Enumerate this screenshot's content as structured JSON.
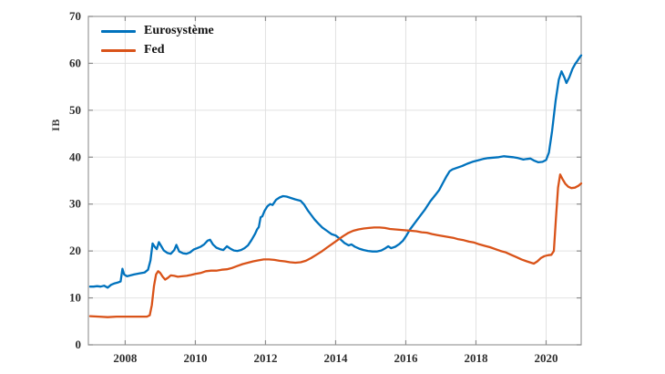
{
  "figure": {
    "background": "#ffffff"
  },
  "style": {
    "grid_color": "#e2e2e2",
    "spine_color": "#9a9a9a",
    "tick_color": "#8c8c8c",
    "tick_label_color": "#2e2e2e",
    "line_width": 2.3
  },
  "chart_data": {
    "type": "line",
    "title": "",
    "xlabel": "",
    "ylabel": "IB",
    "xlim": [
      2006.95,
      2021.0
    ],
    "ylim": [
      0,
      70
    ],
    "x_ticks": [
      2008,
      2010,
      2012,
      2014,
      2016,
      2018,
      2020
    ],
    "y_ticks": [
      0,
      10,
      20,
      30,
      40,
      50,
      60,
      70
    ],
    "grid": true,
    "legend_position": "top-left",
    "series": [
      {
        "name": "Eurosystème",
        "color": "#0072BD",
        "points": [
          [
            2007.0,
            12.4
          ],
          [
            2007.1,
            12.4
          ],
          [
            2007.2,
            12.5
          ],
          [
            2007.3,
            12.4
          ],
          [
            2007.4,
            12.6
          ],
          [
            2007.5,
            12.2
          ],
          [
            2007.6,
            12.8
          ],
          [
            2007.7,
            13.1
          ],
          [
            2007.8,
            13.3
          ],
          [
            2007.87,
            13.5
          ],
          [
            2007.92,
            16.2
          ],
          [
            2007.97,
            15.0
          ],
          [
            2008.05,
            14.6
          ],
          [
            2008.15,
            14.8
          ],
          [
            2008.25,
            15.0
          ],
          [
            2008.4,
            15.2
          ],
          [
            2008.55,
            15.4
          ],
          [
            2008.65,
            16.0
          ],
          [
            2008.72,
            18.0
          ],
          [
            2008.78,
            21.6
          ],
          [
            2008.84,
            20.9
          ],
          [
            2008.9,
            20.4
          ],
          [
            2008.96,
            21.9
          ],
          [
            2009.03,
            21.0
          ],
          [
            2009.1,
            20.1
          ],
          [
            2009.2,
            19.6
          ],
          [
            2009.3,
            19.4
          ],
          [
            2009.4,
            20.2
          ],
          [
            2009.46,
            21.3
          ],
          [
            2009.54,
            19.9
          ],
          [
            2009.65,
            19.5
          ],
          [
            2009.75,
            19.4
          ],
          [
            2009.85,
            19.7
          ],
          [
            2009.95,
            20.3
          ],
          [
            2010.05,
            20.6
          ],
          [
            2010.15,
            20.9
          ],
          [
            2010.25,
            21.4
          ],
          [
            2010.35,
            22.2
          ],
          [
            2010.42,
            22.4
          ],
          [
            2010.5,
            21.4
          ],
          [
            2010.6,
            20.7
          ],
          [
            2010.7,
            20.4
          ],
          [
            2010.8,
            20.2
          ],
          [
            2010.9,
            21.0
          ],
          [
            2011.0,
            20.5
          ],
          [
            2011.1,
            20.1
          ],
          [
            2011.2,
            20.0
          ],
          [
            2011.3,
            20.2
          ],
          [
            2011.4,
            20.6
          ],
          [
            2011.5,
            21.2
          ],
          [
            2011.6,
            22.3
          ],
          [
            2011.7,
            23.6
          ],
          [
            2011.76,
            24.6
          ],
          [
            2011.81,
            25.1
          ],
          [
            2011.86,
            27.2
          ],
          [
            2011.91,
            27.4
          ],
          [
            2011.97,
            28.5
          ],
          [
            2012.05,
            29.5
          ],
          [
            2012.13,
            30.0
          ],
          [
            2012.2,
            29.8
          ],
          [
            2012.3,
            30.9
          ],
          [
            2012.4,
            31.4
          ],
          [
            2012.5,
            31.7
          ],
          [
            2012.6,
            31.6
          ],
          [
            2012.72,
            31.3
          ],
          [
            2012.85,
            31.0
          ],
          [
            2013.0,
            30.7
          ],
          [
            2013.1,
            29.9
          ],
          [
            2013.2,
            28.7
          ],
          [
            2013.3,
            27.7
          ],
          [
            2013.4,
            26.7
          ],
          [
            2013.5,
            25.9
          ],
          [
            2013.62,
            25.0
          ],
          [
            2013.75,
            24.3
          ],
          [
            2013.88,
            23.6
          ],
          [
            2014.0,
            23.3
          ],
          [
            2014.12,
            22.6
          ],
          [
            2014.25,
            21.7
          ],
          [
            2014.37,
            21.2
          ],
          [
            2014.45,
            21.4
          ],
          [
            2014.55,
            20.9
          ],
          [
            2014.67,
            20.5
          ],
          [
            2014.8,
            20.2
          ],
          [
            2014.92,
            20.0
          ],
          [
            2015.05,
            19.9
          ],
          [
            2015.17,
            19.9
          ],
          [
            2015.3,
            20.1
          ],
          [
            2015.42,
            20.6
          ],
          [
            2015.5,
            21.0
          ],
          [
            2015.58,
            20.6
          ],
          [
            2015.7,
            20.9
          ],
          [
            2015.82,
            21.5
          ],
          [
            2015.92,
            22.2
          ],
          [
            2016.02,
            23.3
          ],
          [
            2016.12,
            24.6
          ],
          [
            2016.25,
            25.9
          ],
          [
            2016.4,
            27.4
          ],
          [
            2016.55,
            28.9
          ],
          [
            2016.7,
            30.6
          ],
          [
            2016.85,
            32.0
          ],
          [
            2016.95,
            33.0
          ],
          [
            2017.05,
            34.4
          ],
          [
            2017.15,
            35.8
          ],
          [
            2017.25,
            37.0
          ],
          [
            2017.33,
            37.4
          ],
          [
            2017.45,
            37.7
          ],
          [
            2017.6,
            38.1
          ],
          [
            2017.75,
            38.6
          ],
          [
            2017.9,
            39.0
          ],
          [
            2018.05,
            39.3
          ],
          [
            2018.2,
            39.6
          ],
          [
            2018.35,
            39.8
          ],
          [
            2018.5,
            39.9
          ],
          [
            2018.65,
            40.0
          ],
          [
            2018.8,
            40.2
          ],
          [
            2018.92,
            40.1
          ],
          [
            2019.05,
            40.0
          ],
          [
            2019.2,
            39.8
          ],
          [
            2019.35,
            39.5
          ],
          [
            2019.45,
            39.6
          ],
          [
            2019.55,
            39.7
          ],
          [
            2019.65,
            39.3
          ],
          [
            2019.78,
            38.9
          ],
          [
            2019.9,
            39.0
          ],
          [
            2020.0,
            39.4
          ],
          [
            2020.08,
            41.0
          ],
          [
            2020.17,
            45.5
          ],
          [
            2020.27,
            52.0
          ],
          [
            2020.36,
            56.5
          ],
          [
            2020.44,
            58.3
          ],
          [
            2020.52,
            57.0
          ],
          [
            2020.58,
            55.8
          ],
          [
            2020.66,
            57.0
          ],
          [
            2020.75,
            58.8
          ],
          [
            2020.83,
            59.9
          ],
          [
            2020.9,
            60.6
          ],
          [
            2020.96,
            61.3
          ],
          [
            2021.0,
            61.7
          ]
        ]
      },
      {
        "name": "Fed",
        "color": "#D95319",
        "points": [
          [
            2007.0,
            6.1
          ],
          [
            2007.25,
            6.0
          ],
          [
            2007.5,
            5.9
          ],
          [
            2007.75,
            6.0
          ],
          [
            2008.0,
            6.0
          ],
          [
            2008.25,
            6.0
          ],
          [
            2008.5,
            6.0
          ],
          [
            2008.62,
            6.0
          ],
          [
            2008.7,
            6.3
          ],
          [
            2008.76,
            8.5
          ],
          [
            2008.82,
            12.5
          ],
          [
            2008.88,
            15.0
          ],
          [
            2008.94,
            15.7
          ],
          [
            2009.0,
            15.3
          ],
          [
            2009.07,
            14.5
          ],
          [
            2009.14,
            13.9
          ],
          [
            2009.22,
            14.3
          ],
          [
            2009.3,
            14.8
          ],
          [
            2009.4,
            14.7
          ],
          [
            2009.5,
            14.5
          ],
          [
            2009.62,
            14.6
          ],
          [
            2009.75,
            14.7
          ],
          [
            2009.88,
            14.9
          ],
          [
            2010.0,
            15.1
          ],
          [
            2010.15,
            15.3
          ],
          [
            2010.3,
            15.7
          ],
          [
            2010.45,
            15.8
          ],
          [
            2010.6,
            15.8
          ],
          [
            2010.75,
            16.0
          ],
          [
            2010.9,
            16.1
          ],
          [
            2011.05,
            16.4
          ],
          [
            2011.2,
            16.8
          ],
          [
            2011.35,
            17.2
          ],
          [
            2011.5,
            17.5
          ],
          [
            2011.65,
            17.8
          ],
          [
            2011.8,
            18.0
          ],
          [
            2011.95,
            18.2
          ],
          [
            2012.1,
            18.2
          ],
          [
            2012.25,
            18.1
          ],
          [
            2012.4,
            17.9
          ],
          [
            2012.55,
            17.8
          ],
          [
            2012.7,
            17.6
          ],
          [
            2012.85,
            17.5
          ],
          [
            2013.0,
            17.6
          ],
          [
            2013.15,
            17.9
          ],
          [
            2013.3,
            18.5
          ],
          [
            2013.45,
            19.2
          ],
          [
            2013.6,
            19.9
          ],
          [
            2013.75,
            20.7
          ],
          [
            2013.9,
            21.5
          ],
          [
            2014.05,
            22.3
          ],
          [
            2014.2,
            23.1
          ],
          [
            2014.35,
            23.8
          ],
          [
            2014.5,
            24.3
          ],
          [
            2014.65,
            24.6
          ],
          [
            2014.8,
            24.8
          ],
          [
            2014.95,
            24.9
          ],
          [
            2015.1,
            25.0
          ],
          [
            2015.25,
            25.0
          ],
          [
            2015.4,
            24.9
          ],
          [
            2015.55,
            24.7
          ],
          [
            2015.7,
            24.6
          ],
          [
            2015.85,
            24.5
          ],
          [
            2016.0,
            24.4
          ],
          [
            2016.15,
            24.3
          ],
          [
            2016.3,
            24.2
          ],
          [
            2016.45,
            24.0
          ],
          [
            2016.6,
            23.9
          ],
          [
            2016.75,
            23.6
          ],
          [
            2016.9,
            23.4
          ],
          [
            2017.05,
            23.2
          ],
          [
            2017.2,
            23.0
          ],
          [
            2017.35,
            22.8
          ],
          [
            2017.5,
            22.5
          ],
          [
            2017.65,
            22.3
          ],
          [
            2017.8,
            22.0
          ],
          [
            2017.95,
            21.8
          ],
          [
            2018.1,
            21.4
          ],
          [
            2018.25,
            21.1
          ],
          [
            2018.4,
            20.8
          ],
          [
            2018.55,
            20.4
          ],
          [
            2018.7,
            20.0
          ],
          [
            2018.85,
            19.7
          ],
          [
            2019.0,
            19.2
          ],
          [
            2019.15,
            18.7
          ],
          [
            2019.3,
            18.2
          ],
          [
            2019.45,
            17.8
          ],
          [
            2019.57,
            17.5
          ],
          [
            2019.65,
            17.3
          ],
          [
            2019.75,
            17.8
          ],
          [
            2019.85,
            18.5
          ],
          [
            2019.95,
            18.9
          ],
          [
            2020.05,
            19.1
          ],
          [
            2020.15,
            19.2
          ],
          [
            2020.22,
            20.0
          ],
          [
            2020.28,
            27.0
          ],
          [
            2020.34,
            33.5
          ],
          [
            2020.4,
            36.3
          ],
          [
            2020.47,
            35.3
          ],
          [
            2020.55,
            34.3
          ],
          [
            2020.63,
            33.7
          ],
          [
            2020.72,
            33.4
          ],
          [
            2020.82,
            33.5
          ],
          [
            2020.92,
            33.9
          ],
          [
            2021.0,
            34.4
          ]
        ]
      }
    ]
  }
}
